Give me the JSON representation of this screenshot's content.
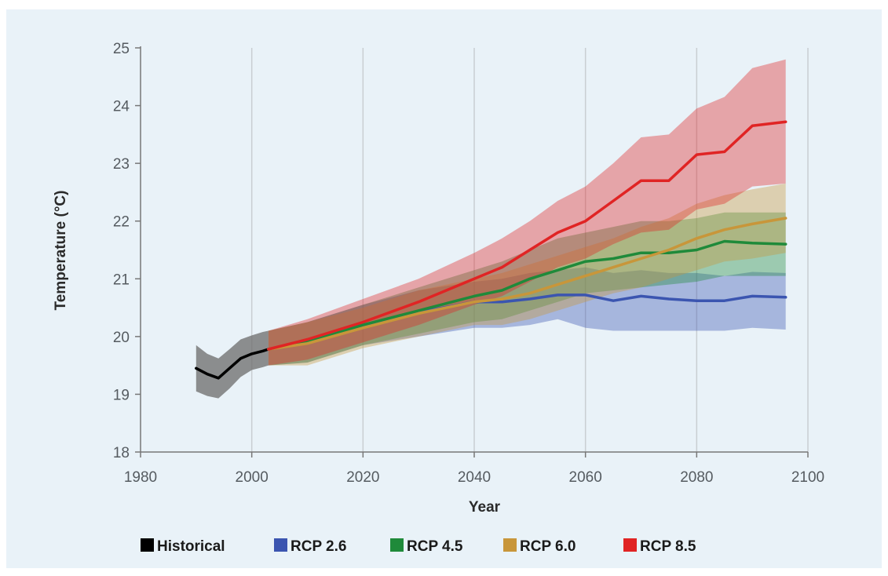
{
  "chart_data": {
    "type": "line",
    "xlabel": "Year",
    "ylabel": "Temperature (°C)",
    "xlim": [
      1980,
      2100
    ],
    "ylim": [
      18,
      25
    ],
    "xticks": [
      1980,
      2000,
      2020,
      2040,
      2060,
      2080,
      2100
    ],
    "yticks": [
      18,
      19,
      20,
      21,
      22,
      23,
      24,
      25
    ],
    "grid": "vertical",
    "legend_position": "bottom",
    "colors": {
      "Historical": "#000000",
      "RCP 2.6": "#3b55b0",
      "RCP 4.5": "#1f8a3a",
      "RCP 6.0": "#c8963a",
      "RCP 8.5": "#e02424",
      "Historical_band": "#6b6b6b",
      "background": "#e9f2f8"
    },
    "series": [
      {
        "name": "Historical",
        "x": [
          1990,
          1992,
          1994,
          1996,
          1998,
          2000,
          2002,
          2003
        ],
        "y": [
          19.45,
          19.35,
          19.28,
          19.45,
          19.62,
          19.7,
          19.75,
          19.78
        ],
        "lower": [
          19.05,
          18.97,
          18.93,
          19.1,
          19.3,
          19.42,
          19.47,
          19.5
        ],
        "upper": [
          19.85,
          19.7,
          19.62,
          19.78,
          19.95,
          20.02,
          20.08,
          20.1
        ]
      },
      {
        "name": "RCP 2.6",
        "x": [
          2003,
          2010,
          2020,
          2030,
          2040,
          2045,
          2050,
          2055,
          2060,
          2065,
          2070,
          2075,
          2080,
          2085,
          2090,
          2096
        ],
        "y": [
          19.78,
          19.9,
          20.2,
          20.42,
          20.6,
          20.6,
          20.65,
          20.72,
          20.72,
          20.62,
          20.7,
          20.65,
          20.62,
          20.62,
          20.7,
          20.68
        ],
        "lower": [
          19.5,
          19.55,
          19.85,
          20.0,
          20.15,
          20.15,
          20.2,
          20.3,
          20.15,
          20.1,
          20.1,
          20.1,
          20.1,
          20.1,
          20.15,
          20.12
        ],
        "upper": [
          20.1,
          20.25,
          20.55,
          20.8,
          20.95,
          21.0,
          21.1,
          21.15,
          21.2,
          21.1,
          21.15,
          21.1,
          21.1,
          21.05,
          21.12,
          21.1
        ]
      },
      {
        "name": "RCP 4.5",
        "x": [
          2003,
          2010,
          2020,
          2030,
          2040,
          2045,
          2050,
          2055,
          2060,
          2065,
          2070,
          2075,
          2080,
          2085,
          2090,
          2096
        ],
        "y": [
          19.78,
          19.9,
          20.2,
          20.45,
          20.7,
          20.8,
          21.0,
          21.15,
          21.3,
          21.35,
          21.45,
          21.45,
          21.5,
          21.65,
          21.62,
          21.6
        ],
        "lower": [
          19.5,
          19.55,
          19.85,
          20.05,
          20.25,
          20.3,
          20.45,
          20.6,
          20.75,
          20.8,
          20.85,
          20.9,
          20.95,
          21.05,
          21.05,
          21.05
        ],
        "upper": [
          20.1,
          20.25,
          20.55,
          20.85,
          21.15,
          21.3,
          21.5,
          21.7,
          21.8,
          21.9,
          22.0,
          22.0,
          22.05,
          22.15,
          22.15,
          22.15
        ]
      },
      {
        "name": "RCP 6.0",
        "x": [
          2003,
          2010,
          2020,
          2030,
          2040,
          2045,
          2050,
          2055,
          2060,
          2065,
          2070,
          2075,
          2080,
          2085,
          2090,
          2096
        ],
        "y": [
          19.78,
          19.88,
          20.15,
          20.4,
          20.6,
          20.65,
          20.75,
          20.9,
          21.05,
          21.2,
          21.35,
          21.5,
          21.7,
          21.85,
          21.95,
          22.05
        ],
        "lower": [
          19.5,
          19.5,
          19.8,
          20.0,
          20.2,
          20.2,
          20.3,
          20.45,
          20.6,
          20.75,
          20.85,
          21.0,
          21.15,
          21.3,
          21.35,
          21.45
        ],
        "upper": [
          20.1,
          20.25,
          20.5,
          20.8,
          21.0,
          21.1,
          21.25,
          21.4,
          21.55,
          21.7,
          21.9,
          22.05,
          22.3,
          22.45,
          22.55,
          22.65
        ]
      },
      {
        "name": "RCP 8.5",
        "x": [
          2003,
          2010,
          2020,
          2030,
          2040,
          2045,
          2050,
          2055,
          2060,
          2065,
          2070,
          2075,
          2080,
          2085,
          2090,
          2096
        ],
        "y": [
          19.78,
          19.95,
          20.25,
          20.6,
          21.0,
          21.2,
          21.5,
          21.8,
          22.0,
          22.35,
          22.7,
          22.7,
          23.15,
          23.2,
          23.65,
          23.72
        ],
        "lower": [
          19.5,
          19.6,
          19.9,
          20.2,
          20.55,
          20.7,
          20.95,
          21.2,
          21.35,
          21.6,
          21.8,
          21.85,
          22.2,
          22.3,
          22.6,
          22.65
        ],
        "upper": [
          20.1,
          20.3,
          20.65,
          21.0,
          21.45,
          21.7,
          22.0,
          22.35,
          22.6,
          23.0,
          23.45,
          23.5,
          23.95,
          24.15,
          24.65,
          24.8
        ]
      }
    ]
  }
}
